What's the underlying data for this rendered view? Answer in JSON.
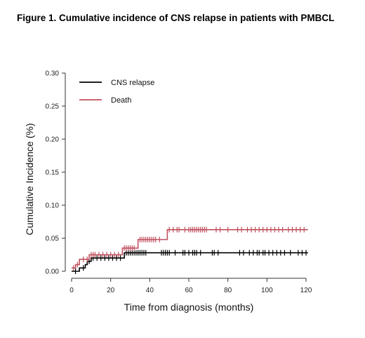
{
  "figure_title": "Figure 1. Cumulative incidence of CNS relapse in patients with PMBCL",
  "chart_data": {
    "type": "line",
    "xlabel": "Time from diagnosis (months)",
    "ylabel": "Cumulative Incidence (%)",
    "xlim": [
      0,
      120
    ],
    "ylim": [
      0,
      0.3
    ],
    "xticks": [
      "0",
      "20",
      "40",
      "60",
      "80",
      "100",
      "120"
    ],
    "yticks": [
      "0.00",
      "0.05",
      "0.10",
      "0.15",
      "0.20",
      "0.25",
      "0.30"
    ],
    "grid": false,
    "legend_position": "top-left",
    "series": [
      {
        "name": "CNS relapse",
        "color": "#000000",
        "steps": [
          [
            0,
            0
          ],
          [
            4,
            0.005
          ],
          [
            7,
            0.01
          ],
          [
            8,
            0.015
          ],
          [
            10,
            0.02
          ],
          [
            27,
            0.028
          ],
          [
            121,
            0.028
          ]
        ],
        "censor_times": [
          2,
          6,
          9,
          11,
          13,
          15,
          17,
          19,
          21,
          23,
          25,
          28,
          29,
          30,
          31,
          32,
          33,
          34,
          35,
          36,
          37,
          38,
          46,
          47,
          48,
          49,
          50,
          53,
          57,
          58,
          60,
          62,
          63,
          64,
          66,
          72,
          73,
          75,
          86,
          88,
          91,
          93,
          95,
          96,
          98,
          99,
          101,
          103,
          105,
          107,
          109,
          112,
          116,
          118,
          120
        ]
      },
      {
        "name": "Death",
        "color": "#c0505f",
        "steps": [
          [
            0,
            0.005
          ],
          [
            2,
            0.01
          ],
          [
            4,
            0.018
          ],
          [
            9,
            0.025
          ],
          [
            26,
            0.035
          ],
          [
            34,
            0.048
          ],
          [
            49,
            0.063
          ],
          [
            121,
            0.063
          ]
        ],
        "censor_times": [
          1,
          3,
          6,
          8,
          10,
          11,
          12,
          14,
          16,
          18,
          20,
          22,
          24,
          27,
          28,
          29,
          30,
          31,
          32,
          35,
          36,
          37,
          38,
          39,
          40,
          41,
          42,
          43,
          45,
          50,
          52,
          54,
          55,
          58,
          60,
          61,
          62,
          63,
          64,
          65,
          66,
          67,
          68,
          69,
          74,
          76,
          80,
          85,
          87,
          90,
          92,
          94,
          96,
          98,
          100,
          102,
          104,
          106,
          108,
          111,
          113,
          115,
          117,
          119
        ]
      }
    ]
  }
}
